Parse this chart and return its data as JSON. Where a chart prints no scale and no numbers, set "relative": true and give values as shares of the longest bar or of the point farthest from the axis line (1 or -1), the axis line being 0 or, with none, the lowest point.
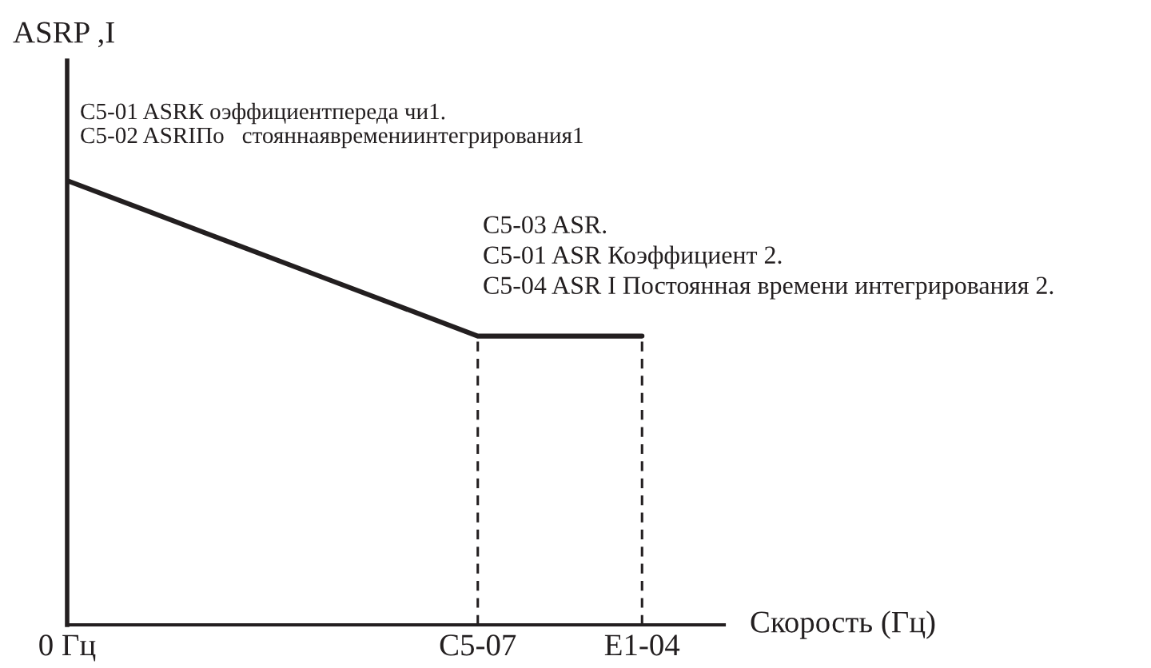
{
  "chart_data": {
    "type": "line",
    "ylabel": "ASRP ,I",
    "xlabel": "Скорость (Гц)",
    "relative": true,
    "line_style": "solid",
    "categories": [
      "0 Гц",
      null,
      null,
      null,
      null,
      "C5-07",
      null,
      "E1-04"
    ],
    "series": [
      {
        "color": "#231f20",
        "values": [
          1,
          0.93,
          0.86,
          0.79,
          0.72,
          0.65,
          0.65,
          0.65
        ]
      }
    ],
    "ref_lines": [
      {
        "axis": "x",
        "value": "C5-07",
        "line_style": "dashed",
        "color": "#231f20"
      },
      {
        "axis": "x",
        "value": "E1-04",
        "line_style": "dashed",
        "color": "#231f20"
      }
    ],
    "annotations": [
      "C5-01 ASRК оэффициентпереда чи1.",
      "C5-02 ASRIПо   стояннаявремениинтегрирования1",
      "C5-03 ASR.",
      "C5-01 ASR Коэффициент 2.",
      "C5-04 ASR I Постоянная времени интегрирования 2."
    ]
  }
}
